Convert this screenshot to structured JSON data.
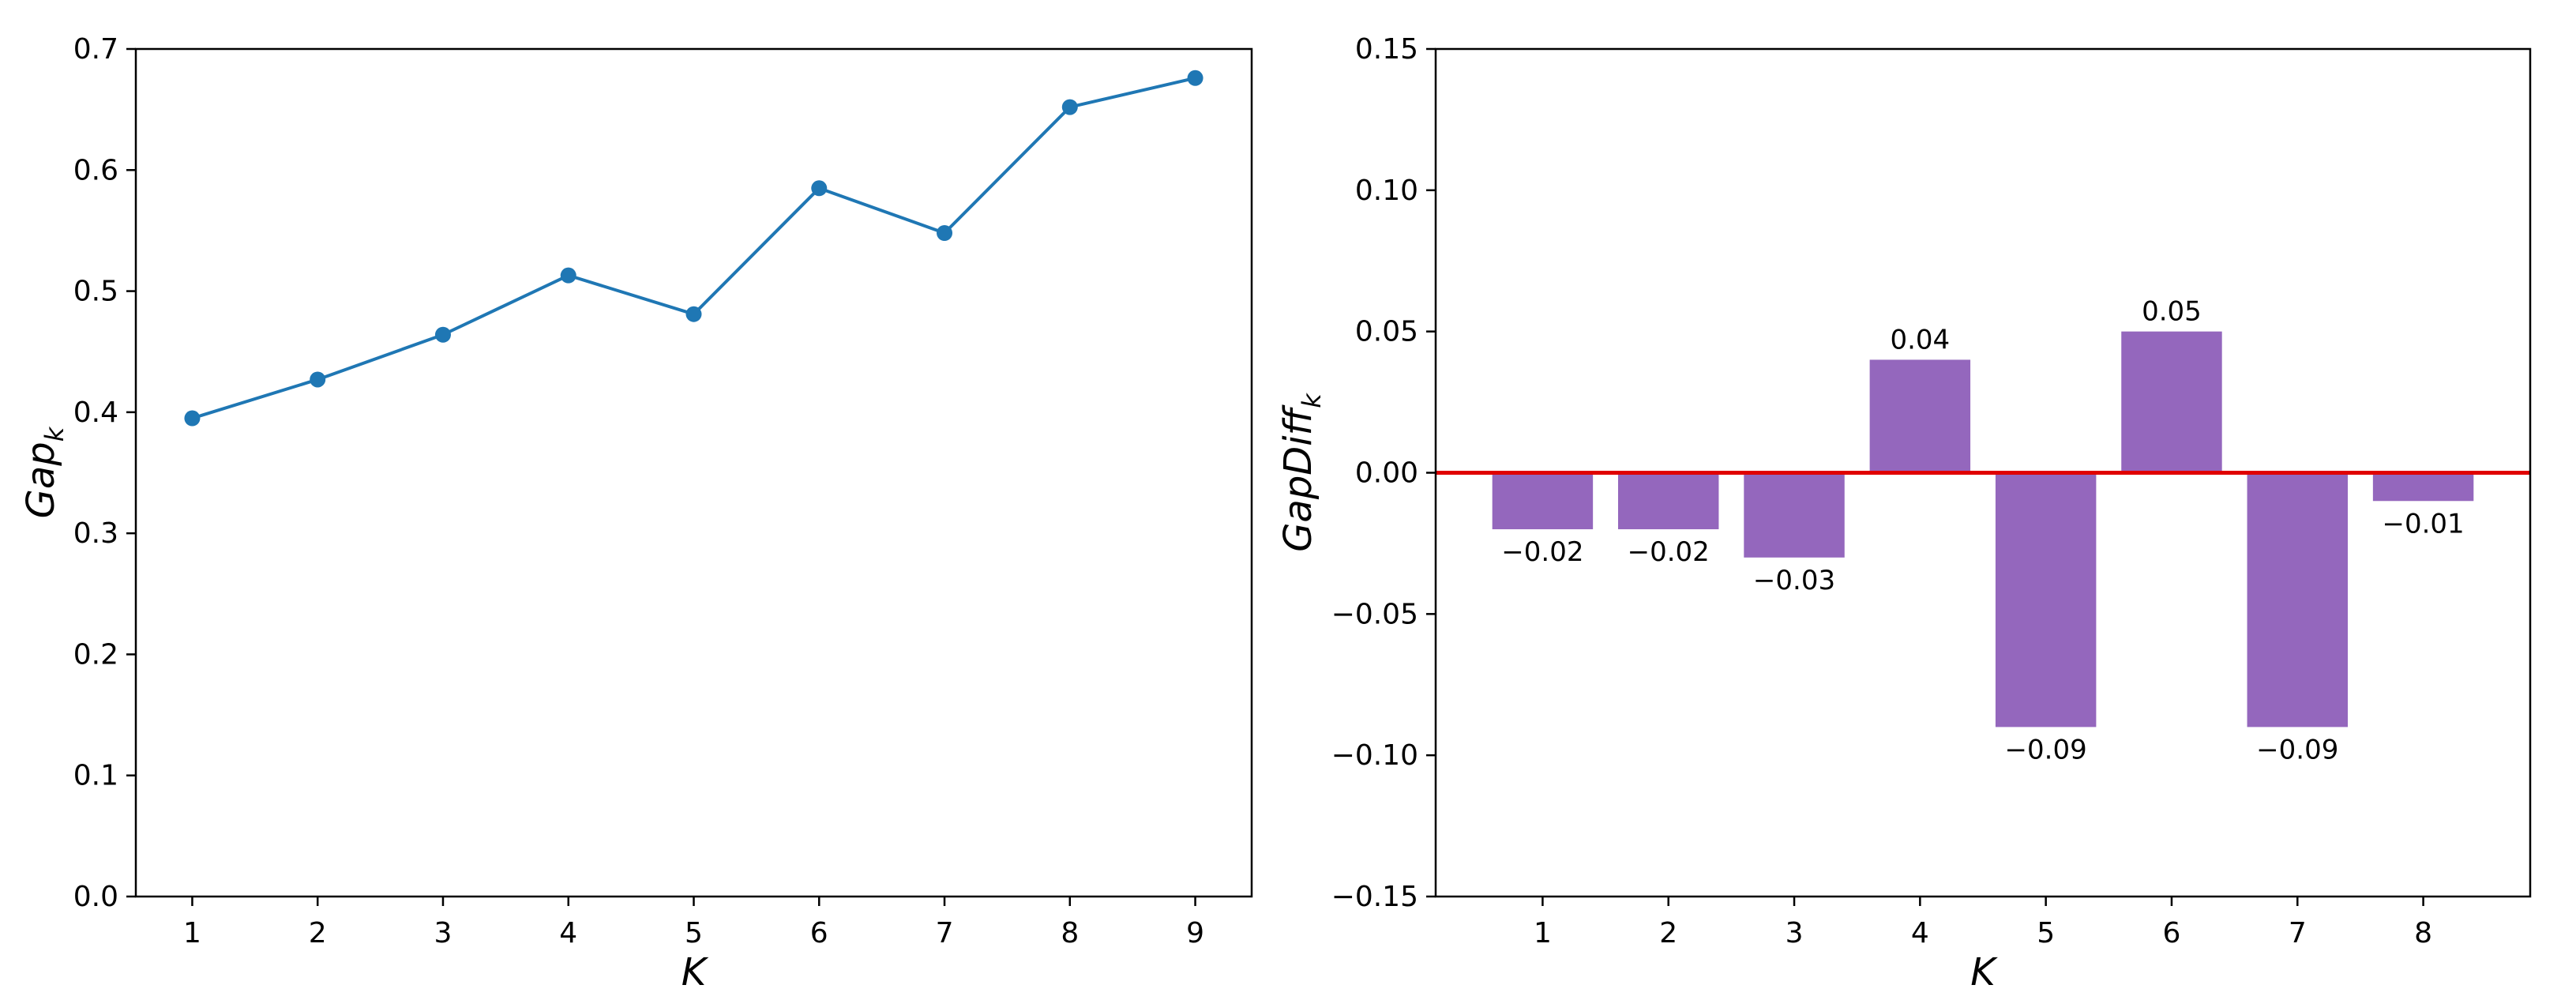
{
  "colors": {
    "line": "#1f77b4",
    "bar": "#9467bd",
    "zero_line": "#e00000",
    "axis": "#000000"
  },
  "chart_data": [
    {
      "type": "line",
      "x": [
        1,
        2,
        3,
        4,
        5,
        6,
        7,
        8,
        9
      ],
      "y": [
        0.395,
        0.427,
        0.464,
        0.513,
        0.481,
        0.585,
        0.548,
        0.652,
        0.676
      ],
      "xlabel": "K",
      "ylabel": {
        "base": "Gap",
        "subscript": "k"
      },
      "xlim": [
        0.55,
        9.45
      ],
      "ylim": [
        0.0,
        0.7
      ],
      "xticks": [
        "1",
        "2",
        "3",
        "4",
        "5",
        "6",
        "7",
        "8",
        "9"
      ],
      "yticks": [
        "0.0",
        "0.1",
        "0.2",
        "0.3",
        "0.4",
        "0.5",
        "0.6",
        "0.7"
      ],
      "grid": false
    },
    {
      "type": "bar",
      "categories": [
        "1",
        "2",
        "3",
        "4",
        "5",
        "6",
        "7",
        "8"
      ],
      "values": [
        -0.02,
        -0.02,
        -0.03,
        0.04,
        -0.09,
        0.05,
        -0.09,
        -0.01
      ],
      "value_labels": [
        "−0.02",
        "−0.02",
        "−0.03",
        "0.04",
        "−0.09",
        "0.05",
        "−0.09",
        "−0.01"
      ],
      "reference_line": 0.0,
      "xlabel": "K",
      "ylabel": {
        "base": "GapDiff",
        "subscript": "k"
      },
      "xlim": [
        0.15,
        8.85
      ],
      "ylim": [
        -0.15,
        0.15
      ],
      "xticks": [
        "1",
        "2",
        "3",
        "4",
        "5",
        "6",
        "7",
        "8"
      ],
      "yticks": [
        "−0.15",
        "−0.10",
        "−0.05",
        "0.00",
        "0.05",
        "0.10",
        "0.15"
      ],
      "ytick_values": [
        -0.15,
        -0.1,
        -0.05,
        0.0,
        0.05,
        0.1,
        0.15
      ],
      "grid": false
    }
  ]
}
